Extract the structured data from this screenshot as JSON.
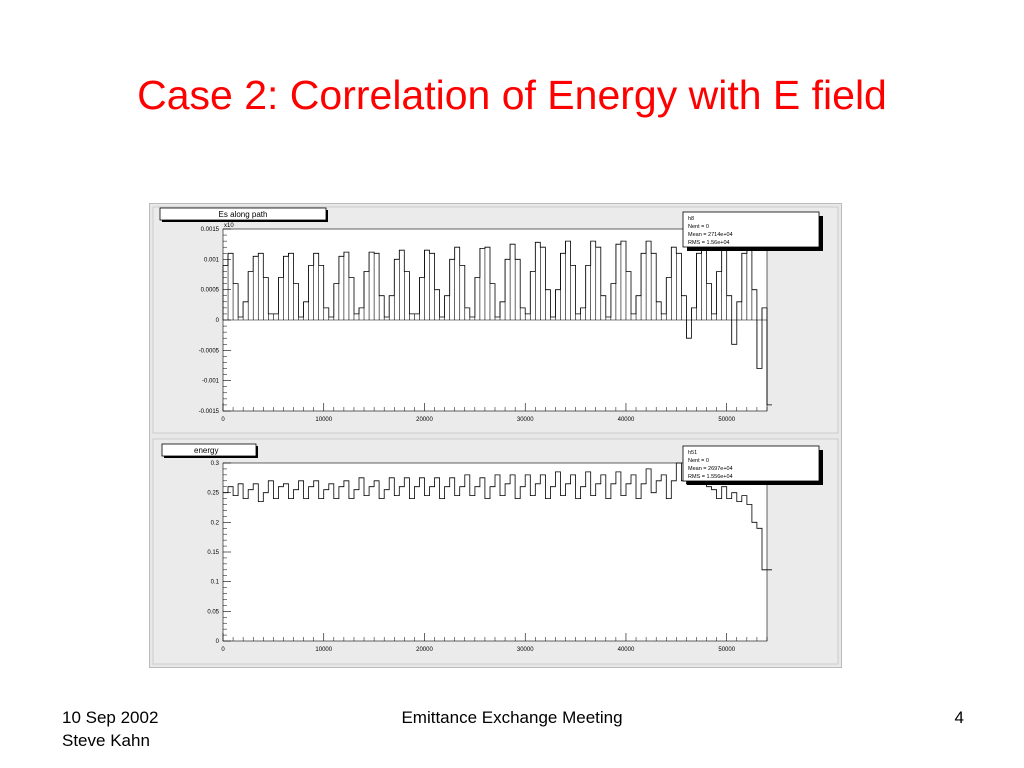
{
  "slide": {
    "title": "Case 2: Correlation of Energy with E field",
    "footer": {
      "date": "10 Sep 2002",
      "author": "Steve Kahn",
      "event": "Emittance Exchange Meeting",
      "page": "4"
    }
  },
  "colors": {
    "title": "#ff0000",
    "frame": "#e8e8e8",
    "plot_bg": "#ffffff",
    "line": "#000000"
  },
  "chart_data": [
    {
      "type": "line",
      "title": "Es along path",
      "exponent_label": "x10",
      "ylim": [
        -0.0015,
        0.0015
      ],
      "xlim": [
        0,
        54000
      ],
      "xticks": [
        "0",
        "10000",
        "20000",
        "30000",
        "40000",
        "50000"
      ],
      "yticks": [
        "-0.0015",
        "-0.001",
        "-0.0005",
        "0",
        "0.0005",
        "0.001",
        "0.0015"
      ],
      "grid": false,
      "stats": {
        "name": "h8",
        "lines": [
          "h8",
          "Nent = 0",
          "Mean  = 2714e+04",
          "RMS  = 1.56e+04"
        ]
      },
      "x": [
        0,
        500,
        1000,
        1500,
        2000,
        2500,
        3000,
        3500,
        4000,
        4500,
        5000,
        5500,
        6000,
        6500,
        7000,
        7500,
        8000,
        8500,
        9000,
        9500,
        10000,
        10500,
        11000,
        11500,
        12000,
        12500,
        13000,
        13500,
        14000,
        14500,
        15000,
        15500,
        16000,
        16500,
        17000,
        17500,
        18000,
        18500,
        19000,
        19500,
        20000,
        20500,
        21000,
        21500,
        22000,
        22500,
        23000,
        23500,
        24000,
        24500,
        25000,
        25500,
        26000,
        26500,
        27000,
        27500,
        28000,
        28500,
        29000,
        29500,
        30000,
        30500,
        31000,
        31500,
        32000,
        32500,
        33000,
        33500,
        34000,
        34500,
        35000,
        35500,
        36000,
        36500,
        37000,
        37500,
        38000,
        38500,
        39000,
        39500,
        40000,
        40500,
        41000,
        41500,
        42000,
        42500,
        43000,
        43500,
        44000,
        44500,
        45000,
        45500,
        46000,
        46500,
        47000,
        47500,
        48000,
        48500,
        49000,
        49500,
        50000,
        50500,
        51000,
        51500,
        52000,
        52500,
        53000,
        53500,
        54000
      ],
      "y": [
        0.0009,
        0.0011,
        0.0006,
        5e-05,
        0.0003,
        0.0008,
        0.00105,
        0.0011,
        0.0007,
        0.0001,
        0.0001,
        0.0007,
        0.00105,
        0.0011,
        0.0006,
        5e-05,
        0.0003,
        0.0009,
        0.0011,
        0.0009,
        0.0002,
        5e-05,
        0.0006,
        0.00105,
        0.00112,
        0.0007,
        0.0001,
        0.0002,
        0.0008,
        0.00112,
        0.0011,
        0.0004,
        5e-05,
        0.0004,
        0.001,
        0.00115,
        0.0008,
        0.0001,
        0.0001,
        0.0007,
        0.00115,
        0.0011,
        0.0005,
        5e-05,
        0.0004,
        0.001,
        0.0012,
        0.0009,
        0.0002,
        5e-05,
        0.0007,
        0.00118,
        0.0012,
        0.0006,
        5e-05,
        0.0003,
        0.001,
        0.00125,
        0.001,
        0.0002,
        0.0001,
        0.0008,
        0.00128,
        0.0012,
        0.0005,
        5e-05,
        0.0005,
        0.0011,
        0.0013,
        0.0009,
        0.0001,
        0.0002,
        0.0009,
        0.0013,
        0.0012,
        0.0004,
        5e-05,
        0.0006,
        0.00125,
        0.0013,
        0.0008,
        0.0001,
        0.0004,
        0.0011,
        0.0013,
        0.0011,
        0.0003,
        0.0001,
        0.0007,
        0.0012,
        0.0011,
        0.0004,
        -0.0003,
        0.0002,
        0.0011,
        0.0012,
        0.0006,
        0.0001,
        0.0008,
        0.0012,
        0.0004,
        -0.0004,
        0.0003,
        0.0011,
        0.0012,
        0.0005,
        -0.0008,
        0.0002,
        -0.0014
      ]
    },
    {
      "type": "line",
      "title": "energy",
      "ylim": [
        0,
        0.3
      ],
      "xlim": [
        0,
        54000
      ],
      "xticks": [
        "0",
        "10000",
        "20000",
        "30000",
        "40000",
        "50000"
      ],
      "yticks": [
        "0",
        "0.05",
        "0.1",
        "0.15",
        "0.2",
        "0.25",
        "0.3"
      ],
      "grid": false,
      "stats": {
        "name": "h51",
        "lines": [
          "h51",
          "Nent = 0",
          "Mean  = 2697e+04",
          "RMS  = 1.556e+04"
        ]
      },
      "x": [
        0,
        500,
        1000,
        1500,
        2000,
        2500,
        3000,
        3500,
        4000,
        4500,
        5000,
        5500,
        6000,
        6500,
        7000,
        7500,
        8000,
        8500,
        9000,
        9500,
        10000,
        10500,
        11000,
        11500,
        12000,
        12500,
        13000,
        13500,
        14000,
        14500,
        15000,
        15500,
        16000,
        16500,
        17000,
        17500,
        18000,
        18500,
        19000,
        19500,
        20000,
        20500,
        21000,
        21500,
        22000,
        22500,
        23000,
        23500,
        24000,
        24500,
        25000,
        25500,
        26000,
        26500,
        27000,
        27500,
        28000,
        28500,
        29000,
        29500,
        30000,
        30500,
        31000,
        31500,
        32000,
        32500,
        33000,
        33500,
        34000,
        34500,
        35000,
        35500,
        36000,
        36500,
        37000,
        37500,
        38000,
        38500,
        39000,
        39500,
        40000,
        40500,
        41000,
        41500,
        42000,
        42500,
        43000,
        43500,
        44000,
        44500,
        45000,
        45500,
        46000,
        46500,
        47000,
        47500,
        48000,
        48500,
        49000,
        49500,
        50000,
        50500,
        51000,
        51500,
        52000,
        52500,
        53000,
        53500,
        54000
      ],
      "y": [
        0.25,
        0.26,
        0.245,
        0.265,
        0.24,
        0.255,
        0.265,
        0.235,
        0.25,
        0.27,
        0.24,
        0.26,
        0.265,
        0.24,
        0.255,
        0.27,
        0.24,
        0.26,
        0.27,
        0.24,
        0.255,
        0.265,
        0.24,
        0.26,
        0.27,
        0.24,
        0.255,
        0.275,
        0.245,
        0.26,
        0.27,
        0.24,
        0.255,
        0.275,
        0.245,
        0.26,
        0.275,
        0.24,
        0.26,
        0.275,
        0.245,
        0.26,
        0.275,
        0.24,
        0.26,
        0.275,
        0.245,
        0.26,
        0.28,
        0.245,
        0.26,
        0.275,
        0.24,
        0.26,
        0.28,
        0.245,
        0.265,
        0.28,
        0.24,
        0.26,
        0.28,
        0.245,
        0.265,
        0.28,
        0.24,
        0.26,
        0.285,
        0.245,
        0.265,
        0.28,
        0.24,
        0.26,
        0.285,
        0.245,
        0.265,
        0.28,
        0.24,
        0.265,
        0.285,
        0.245,
        0.265,
        0.28,
        0.24,
        0.265,
        0.29,
        0.25,
        0.27,
        0.28,
        0.24,
        0.27,
        0.3,
        0.27,
        0.265,
        0.3,
        0.29,
        0.27,
        0.26,
        0.255,
        0.24,
        0.26,
        0.24,
        0.25,
        0.235,
        0.245,
        0.23,
        0.2,
        0.19,
        0.12,
        0.12
      ]
    }
  ]
}
